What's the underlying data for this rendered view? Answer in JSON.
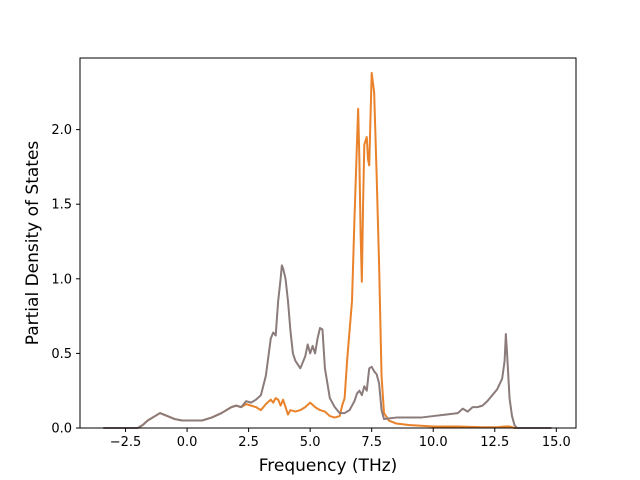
{
  "chart_data": {
    "type": "line",
    "title": "",
    "xlabel": "Frequency (THz)",
    "ylabel": "Partial Density of States",
    "xlim": [
      -4.35,
      15.8
    ],
    "ylim": [
      0.0,
      2.48
    ],
    "xticks": [
      -2.5,
      0.0,
      2.5,
      5.0,
      7.5,
      10.0,
      12.5,
      15.0
    ],
    "xtick_labels": [
      "−2.5",
      "0.0",
      "2.5",
      "5.0",
      "7.5",
      "10.0",
      "12.5",
      "15.0"
    ],
    "yticks": [
      0.0,
      0.5,
      1.0,
      1.5,
      2.0
    ],
    "ytick_labels": [
      "0.0",
      "0.5",
      "1.0",
      "1.5",
      "2.0"
    ],
    "grid": false,
    "legend": "none",
    "series": [
      {
        "color": "#e9822a",
        "points": [
          [
            -3.4,
            0.0
          ],
          [
            -2.0,
            0.0
          ],
          [
            -1.8,
            0.02
          ],
          [
            -1.6,
            0.05
          ],
          [
            -1.3,
            0.08
          ],
          [
            -1.1,
            0.1
          ],
          [
            -0.8,
            0.08
          ],
          [
            -0.5,
            0.06
          ],
          [
            -0.2,
            0.05
          ],
          [
            0.2,
            0.05
          ],
          [
            0.6,
            0.05
          ],
          [
            1.0,
            0.07
          ],
          [
            1.4,
            0.1
          ],
          [
            1.8,
            0.14
          ],
          [
            2.0,
            0.15
          ],
          [
            2.2,
            0.14
          ],
          [
            2.4,
            0.16
          ],
          [
            2.6,
            0.15
          ],
          [
            2.8,
            0.14
          ],
          [
            3.0,
            0.12
          ],
          [
            3.2,
            0.16
          ],
          [
            3.4,
            0.19
          ],
          [
            3.5,
            0.17
          ],
          [
            3.6,
            0.2
          ],
          [
            3.7,
            0.19
          ],
          [
            3.8,
            0.15
          ],
          [
            3.9,
            0.19
          ],
          [
            4.0,
            0.14
          ],
          [
            4.1,
            0.09
          ],
          [
            4.2,
            0.12
          ],
          [
            4.4,
            0.11
          ],
          [
            4.6,
            0.12
          ],
          [
            4.8,
            0.14
          ],
          [
            5.0,
            0.17
          ],
          [
            5.2,
            0.14
          ],
          [
            5.4,
            0.12
          ],
          [
            5.6,
            0.11
          ],
          [
            5.8,
            0.08
          ],
          [
            6.0,
            0.07
          ],
          [
            6.2,
            0.08
          ],
          [
            6.3,
            0.15
          ],
          [
            6.4,
            0.2
          ],
          [
            6.5,
            0.45
          ],
          [
            6.7,
            0.85
          ],
          [
            6.8,
            1.4
          ],
          [
            6.9,
            1.9
          ],
          [
            6.95,
            2.14
          ],
          [
            7.0,
            1.8
          ],
          [
            7.05,
            1.3
          ],
          [
            7.1,
            0.98
          ],
          [
            7.15,
            1.5
          ],
          [
            7.2,
            1.9
          ],
          [
            7.3,
            1.95
          ],
          [
            7.35,
            1.8
          ],
          [
            7.4,
            1.76
          ],
          [
            7.5,
            2.38
          ],
          [
            7.6,
            2.25
          ],
          [
            7.7,
            1.7
          ],
          [
            7.8,
            1.1
          ],
          [
            7.9,
            0.35
          ],
          [
            8.0,
            0.1
          ],
          [
            8.2,
            0.05
          ],
          [
            8.5,
            0.03
          ],
          [
            9.0,
            0.02
          ],
          [
            10.0,
            0.01
          ],
          [
            11.0,
            0.01
          ],
          [
            12.0,
            0.005
          ],
          [
            12.6,
            0.005
          ],
          [
            12.9,
            0.01
          ],
          [
            13.1,
            0.01
          ],
          [
            13.3,
            0.0
          ],
          [
            14.8,
            0.0
          ]
        ]
      },
      {
        "color": "#8c7b7b",
        "points": [
          [
            -3.4,
            0.0
          ],
          [
            -2.0,
            0.0
          ],
          [
            -1.8,
            0.02
          ],
          [
            -1.6,
            0.05
          ],
          [
            -1.3,
            0.08
          ],
          [
            -1.1,
            0.1
          ],
          [
            -0.8,
            0.08
          ],
          [
            -0.5,
            0.06
          ],
          [
            -0.2,
            0.05
          ],
          [
            0.2,
            0.05
          ],
          [
            0.6,
            0.05
          ],
          [
            1.0,
            0.07
          ],
          [
            1.4,
            0.1
          ],
          [
            1.8,
            0.14
          ],
          [
            2.0,
            0.15
          ],
          [
            2.2,
            0.14
          ],
          [
            2.4,
            0.18
          ],
          [
            2.6,
            0.17
          ],
          [
            2.8,
            0.19
          ],
          [
            3.0,
            0.22
          ],
          [
            3.2,
            0.35
          ],
          [
            3.4,
            0.6
          ],
          [
            3.5,
            0.64
          ],
          [
            3.6,
            0.62
          ],
          [
            3.7,
            0.85
          ],
          [
            3.8,
            1.0
          ],
          [
            3.85,
            1.09
          ],
          [
            3.9,
            1.07
          ],
          [
            4.0,
            1.0
          ],
          [
            4.1,
            0.85
          ],
          [
            4.2,
            0.65
          ],
          [
            4.3,
            0.5
          ],
          [
            4.4,
            0.45
          ],
          [
            4.6,
            0.4
          ],
          [
            4.8,
            0.48
          ],
          [
            4.9,
            0.56
          ],
          [
            5.0,
            0.5
          ],
          [
            5.1,
            0.55
          ],
          [
            5.2,
            0.5
          ],
          [
            5.3,
            0.6
          ],
          [
            5.4,
            0.67
          ],
          [
            5.5,
            0.66
          ],
          [
            5.6,
            0.4
          ],
          [
            5.8,
            0.2
          ],
          [
            6.0,
            0.14
          ],
          [
            6.2,
            0.1
          ],
          [
            6.4,
            0.1
          ],
          [
            6.6,
            0.12
          ],
          [
            6.8,
            0.18
          ],
          [
            6.9,
            0.23
          ],
          [
            7.0,
            0.25
          ],
          [
            7.1,
            0.22
          ],
          [
            7.2,
            0.28
          ],
          [
            7.3,
            0.25
          ],
          [
            7.4,
            0.4
          ],
          [
            7.5,
            0.41
          ],
          [
            7.6,
            0.38
          ],
          [
            7.7,
            0.36
          ],
          [
            7.8,
            0.3
          ],
          [
            7.9,
            0.12
          ],
          [
            8.0,
            0.06
          ],
          [
            8.5,
            0.07
          ],
          [
            9.0,
            0.07
          ],
          [
            9.5,
            0.07
          ],
          [
            10.0,
            0.08
          ],
          [
            10.5,
            0.09
          ],
          [
            11.0,
            0.1
          ],
          [
            11.2,
            0.13
          ],
          [
            11.4,
            0.11
          ],
          [
            11.6,
            0.14
          ],
          [
            11.8,
            0.14
          ],
          [
            12.0,
            0.15
          ],
          [
            12.2,
            0.18
          ],
          [
            12.4,
            0.22
          ],
          [
            12.6,
            0.26
          ],
          [
            12.8,
            0.33
          ],
          [
            12.9,
            0.45
          ],
          [
            12.95,
            0.63
          ],
          [
            13.0,
            0.5
          ],
          [
            13.1,
            0.2
          ],
          [
            13.2,
            0.08
          ],
          [
            13.3,
            0.02
          ],
          [
            13.4,
            0.0
          ],
          [
            14.8,
            0.0
          ]
        ]
      }
    ]
  }
}
